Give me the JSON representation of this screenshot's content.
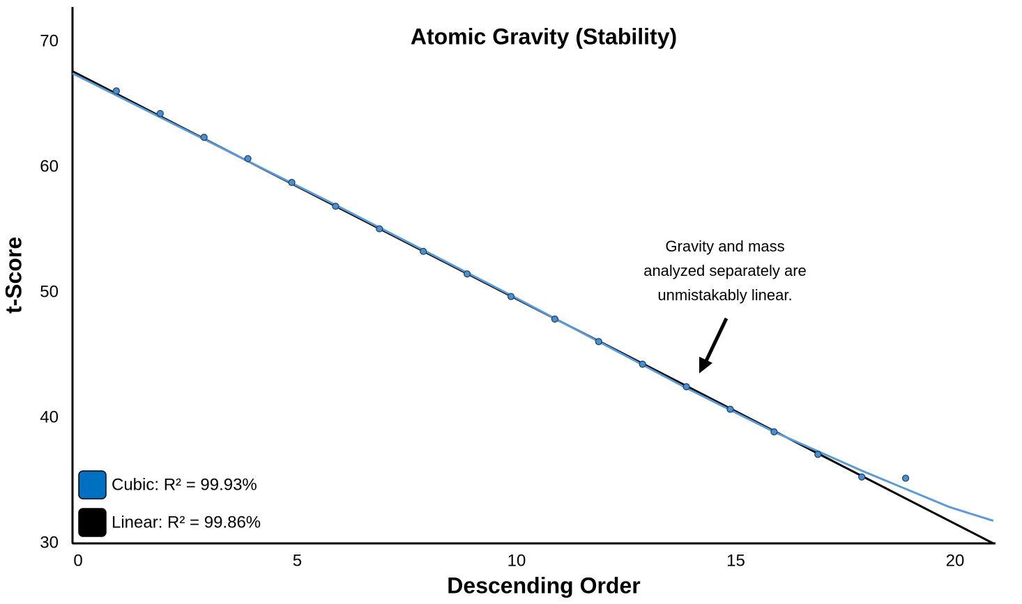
{
  "chart_data": {
    "type": "scatter",
    "title": "Atomic Gravity (Stability)",
    "x_label": "Descending Order",
    "y_label": "t-Score",
    "x": [
      1,
      2,
      3,
      4,
      5,
      6,
      7,
      8,
      9,
      10,
      11,
      12,
      13,
      14,
      15,
      16,
      17,
      18,
      19
    ],
    "values": [
      66.1,
      64.3,
      62.4,
      60.7,
      58.8,
      56.9,
      55.1,
      53.3,
      51.5,
      49.7,
      47.9,
      46.1,
      44.3,
      42.5,
      40.7,
      38.9,
      37.1,
      35.3,
      35.2
    ],
    "color": "#4a90d0",
    "fits": [
      {
        "name": "Cubic: R² = 99.93%",
        "color": "#5b9bd5",
        "legend_color": "#0070c0",
        "x": [
          0,
          2,
          4,
          6,
          8,
          10,
          12,
          14,
          16,
          18,
          20,
          21
        ],
        "values": [
          67.5,
          64.0,
          60.5,
          57.0,
          53.4,
          49.8,
          46.1,
          42.4,
          38.9,
          35.8,
          32.9,
          31.8
        ]
      },
      {
        "name": "Linear: R² = 99.86%",
        "color": "#000000",
        "legend_color": "#000000",
        "x": [
          0,
          21
        ],
        "values": [
          67.67,
          30.0
        ]
      }
    ],
    "annotation": [
      "Gravity and mass",
      "analyzed separately are",
      "unmistakably linear."
    ],
    "xlim": [
      0,
      21.05
    ],
    "ylim": [
      30,
      72.8
    ],
    "xticks": [
      0,
      5,
      10,
      15,
      20
    ],
    "yticks": [
      30,
      40,
      50,
      60,
      70
    ],
    "grid": false
  }
}
